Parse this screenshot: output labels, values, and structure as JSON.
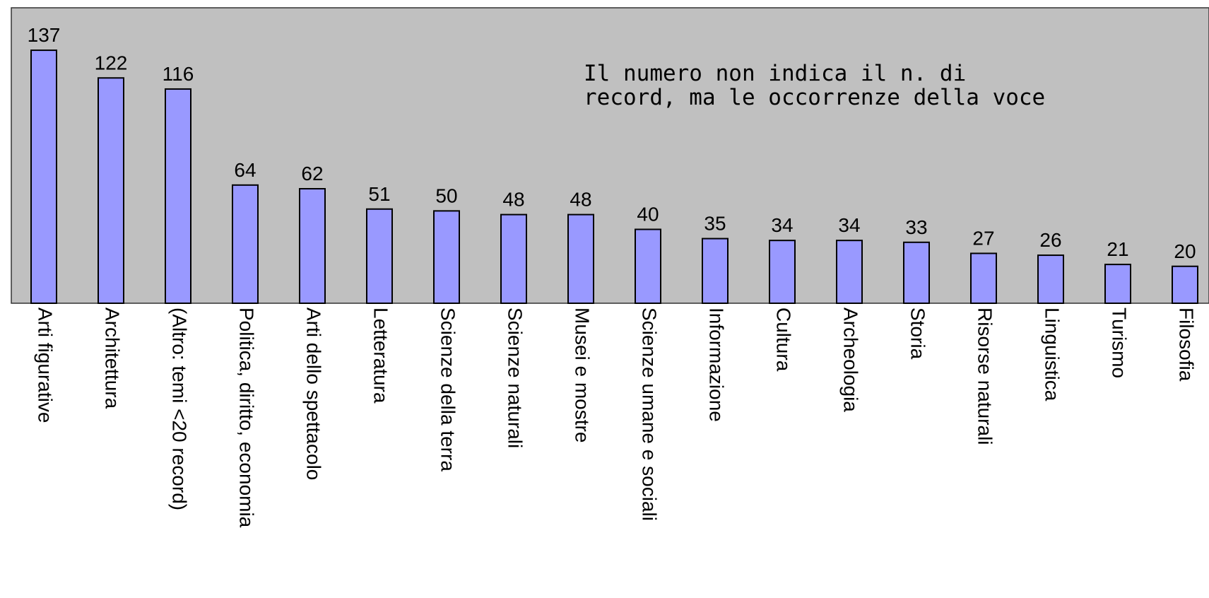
{
  "chart_data": {
    "type": "bar",
    "categories": [
      "Arti figurative",
      "Architettura",
      "(Altro: temi <20 record)",
      "Politica, diritto, economia",
      "Arti dello spettacolo",
      "Letteratura",
      "Scienze della terra",
      "Scienze naturali",
      "Musei e mostre",
      "Scienze umane e sociali",
      "Informazione",
      "Cultura",
      "Archeologia",
      "Storia",
      "Risorse naturali",
      "Linguistica",
      "Turismo",
      "Filosofia"
    ],
    "values": [
      137,
      122,
      116,
      64,
      62,
      51,
      50,
      48,
      48,
      40,
      35,
      34,
      34,
      33,
      27,
      26,
      21,
      20
    ],
    "color": "#9999ff",
    "ylim": [
      0,
      160
    ],
    "annotation": [
      "Il numero non indica il n. di",
      "record, ma le occorrenze della voce"
    ]
  }
}
